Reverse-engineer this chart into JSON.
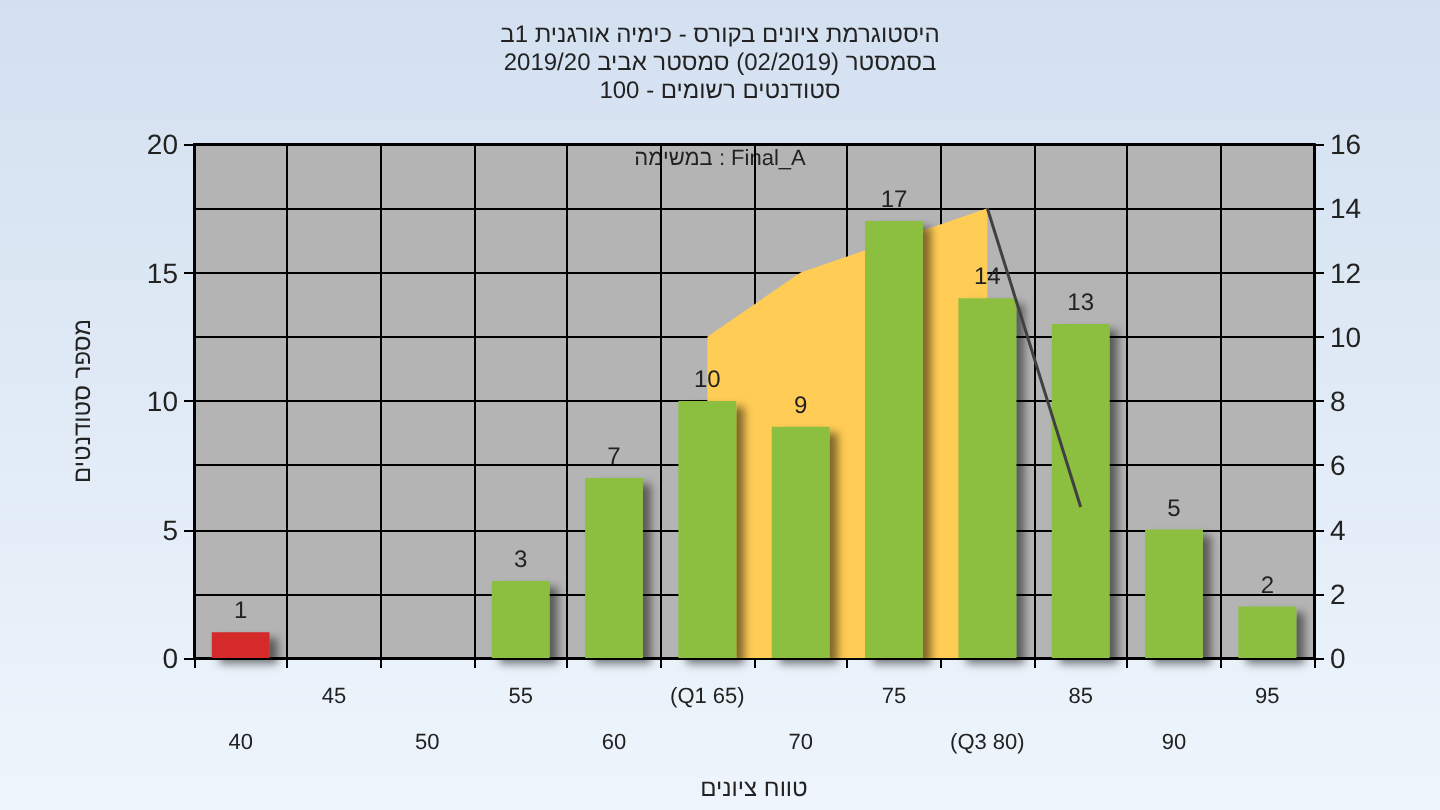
{
  "chart_data": {
    "type": "bar",
    "title": "היסטוגרמת ציונים בקורס - כימיה אורגנית 1ב",
    "subtitle": "בסמסטר  (02/2019)  סמסטר אביב 2019/20\nסטודנטים רשומים - 100",
    "xlabel": "טווח ציונים",
    "ylabel": "מספר סטודנטים",
    "annotations": [
      "במשימה : Final_A"
    ],
    "categories": [
      "40",
      "45",
      "50",
      "55",
      "60",
      "(Q1 65)",
      "70",
      "75",
      "(Q3 80)",
      "85",
      "90",
      "95"
    ],
    "series": [
      {
        "type": "area",
        "axis": "y2",
        "color": "#ffcc55",
        "values": [
          null,
          null,
          null,
          null,
          null,
          10,
          12,
          null,
          14,
          null,
          null,
          null
        ]
      },
      {
        "type": "line",
        "axis": "y2",
        "color": "#404040",
        "values": [
          null,
          null,
          null,
          null,
          null,
          null,
          null,
          null,
          14,
          4.7,
          null,
          null
        ]
      },
      {
        "colors": [
          "#d42a2a",
          "#8cbf3f",
          "#8cbf3f",
          "#8cbf3f",
          "#8cbf3f",
          "#8cbf3f",
          "#8cbf3f",
          "#8cbf3f",
          "#8cbf3f",
          "#8cbf3f",
          "#8cbf3f",
          "#8cbf3f"
        ],
        "values": [
          1,
          0,
          0,
          3,
          7,
          10,
          9,
          17,
          14,
          13,
          5,
          2
        ],
        "value_labels": [
          "1",
          null,
          null,
          "3",
          "7",
          "10",
          "9",
          "17",
          "14",
          "13",
          "5",
          "2"
        ]
      }
    ],
    "ylim": [
      0,
      20
    ],
    "yticks": [
      0,
      5,
      10,
      15,
      20
    ],
    "y2lim": [
      0,
      16
    ],
    "y2ticks": [
      0,
      2,
      4,
      6,
      8,
      10,
      12,
      14,
      16
    ],
    "grid": true
  }
}
